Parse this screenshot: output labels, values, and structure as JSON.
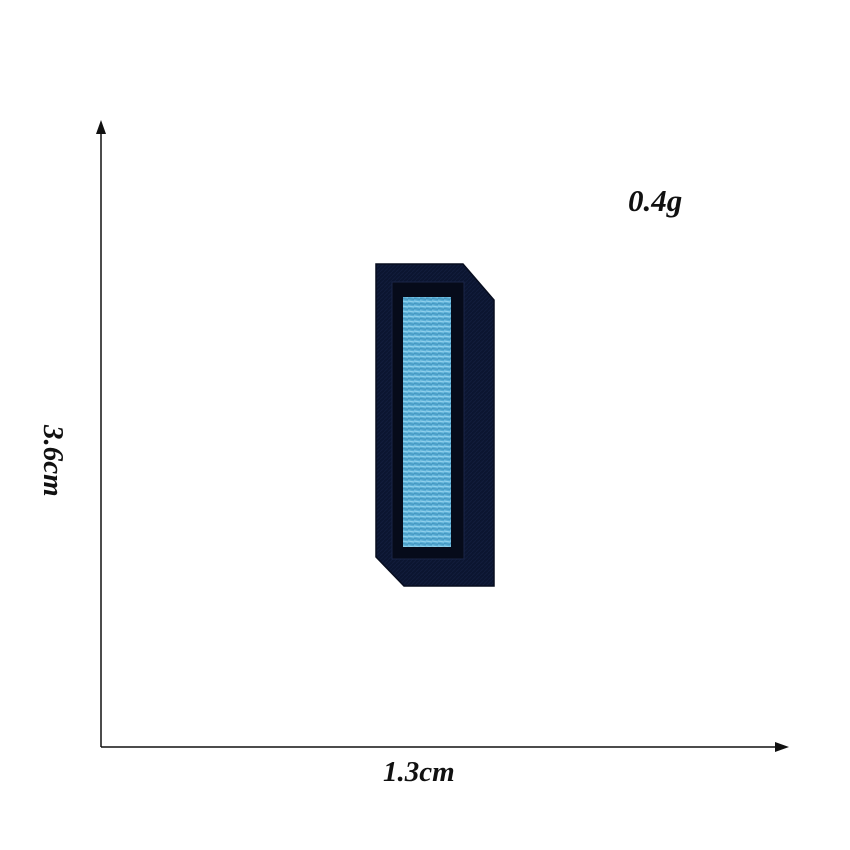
{
  "labels": {
    "weight": "0.4g",
    "width": "1.3cm",
    "height": "3.6cm"
  },
  "colors": {
    "background": "#ffffff",
    "axis": "#111111",
    "patch_base": "#0b1530",
    "patch_border": "#070d1f",
    "stripe_fill": "#5aaed6",
    "stripe_highlight": "#8fd0ec"
  }
}
